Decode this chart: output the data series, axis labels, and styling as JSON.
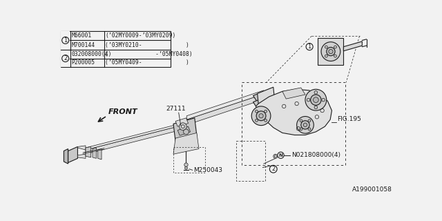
{
  "bg_color": "#f2f2f2",
  "line_color": "#1a1a1a",
  "table_rows": [
    [
      "M66001",
      "(’02MY0009-’03MY0209)"
    ],
    [
      "M700144",
      "(’03MY0210-             )"
    ],
    [
      "032008000(4)",
      "(              -’05MY0408)"
    ],
    [
      "P200005",
      "(’05MY0409-             )"
    ]
  ],
  "labels": {
    "front_text": "FRONT",
    "part_27111": "27111",
    "part_M250043": "M250043",
    "part_N021808000": "N021808000(4)",
    "fig195": "FIG.195",
    "drawing_no": "A199001058"
  }
}
